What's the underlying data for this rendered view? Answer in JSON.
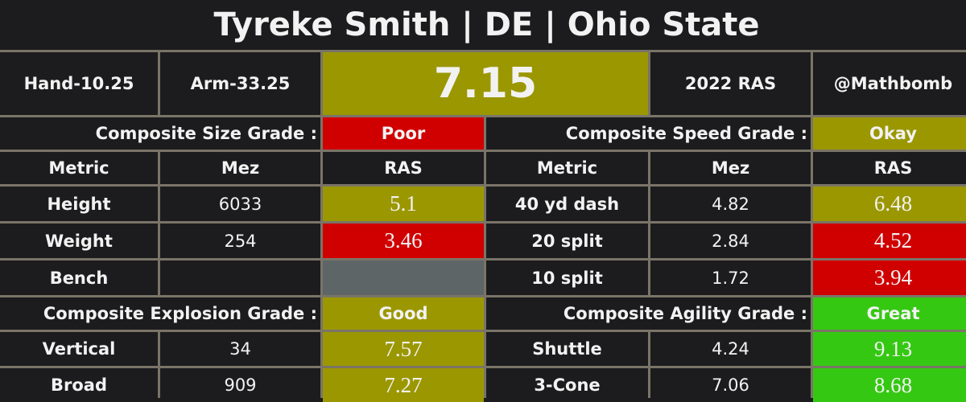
{
  "title": "Tyreke Smith | DE | Ohio State",
  "hand": "Hand-10.25",
  "arm": "Arm-33.25",
  "score": "7.15",
  "year": "2022 RAS",
  "handle": "@Mathbomb",
  "size": {
    "label": "Composite Size Grade :",
    "grade": "Poor"
  },
  "speed": {
    "label": "Composite Speed Grade :",
    "grade": "Okay"
  },
  "explosion": {
    "label": "Composite Explosion Grade :",
    "grade": "Good"
  },
  "agility": {
    "label": "Composite Agility Grade :",
    "grade": "Great"
  },
  "headers": [
    "Metric",
    "Mez",
    "RAS",
    "Metric",
    "Mez",
    "RAS"
  ],
  "rows": [
    {
      "m1": "Height",
      "z1": "6033",
      "r1": "5.1",
      "m2": "40 yd dash",
      "z2": "4.82",
      "r2": "6.48"
    },
    {
      "m1": "Weight",
      "z1": "254",
      "r1": "3.46",
      "m2": "20 split",
      "z2": "2.84",
      "r2": "4.52"
    },
    {
      "m1": "Bench",
      "z1": "",
      "r1": "",
      "m2": "10 split",
      "z2": "1.72",
      "r2": "3.94"
    },
    {
      "m1": "Vertical",
      "z1": "34",
      "r1": "7.57",
      "m2": "Shuttle",
      "z2": "4.24",
      "r2": "9.13"
    },
    {
      "m1": "Broad",
      "z1": "909",
      "r1": "7.27",
      "m2": "3-Cone",
      "z2": "7.06",
      "r2": "8.68"
    }
  ],
  "colors": {
    "okay": "#9b9700",
    "poor": "#d10000",
    "great": "#35c812",
    "missing": "#5e6567"
  }
}
